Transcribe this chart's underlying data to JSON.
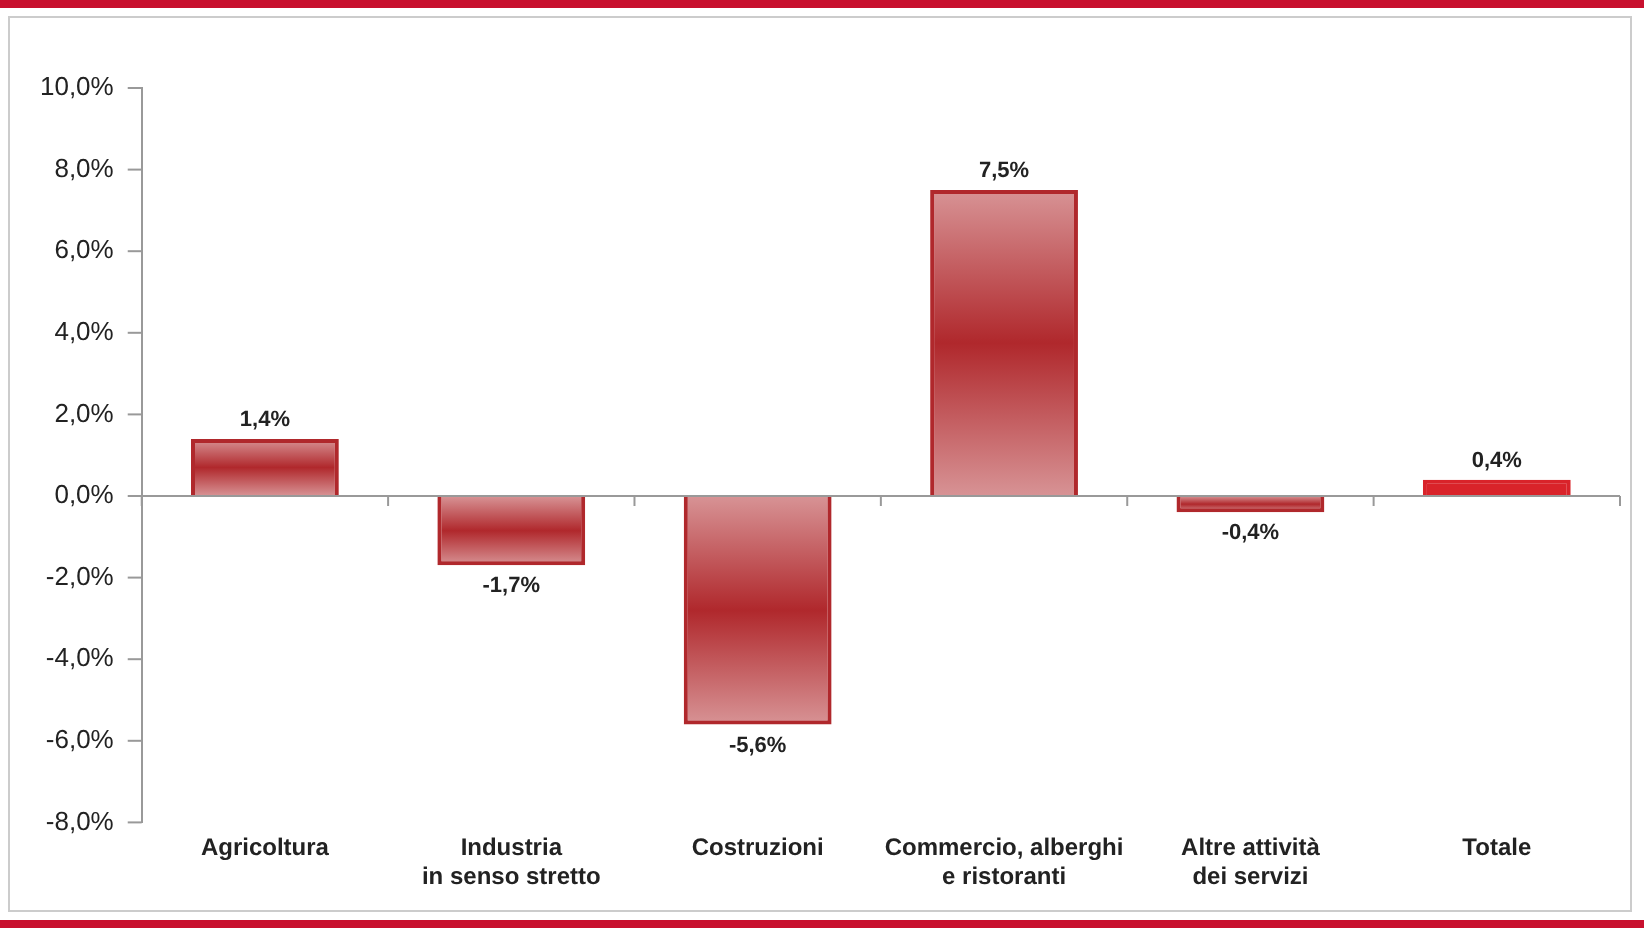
{
  "chart_data": {
    "type": "bar",
    "categories": [
      "Agricoltura",
      "Industria\nin senso stretto",
      "Costruzioni",
      "Commercio, alberghi\ne ristoranti",
      "Altre attività\ndei servizi",
      "Totale"
    ],
    "values": [
      1.4,
      -1.7,
      -5.6,
      7.5,
      -0.4,
      0.4
    ],
    "colors": [
      "#b0282c",
      "#b0282c",
      "#b0282c",
      "#b0282c",
      "#b0282c",
      "#d9232a"
    ],
    "value_labels": [
      "1,4%",
      "-1,7%",
      "-5,6%",
      "7,5%",
      "-0,4%",
      "0,4%"
    ],
    "ylim": [
      -8,
      10
    ],
    "yticks": [
      {
        "value": -8,
        "label": "-8,0%"
      },
      {
        "value": -6,
        "label": "-6,0%"
      },
      {
        "value": -4,
        "label": "-4,0%"
      },
      {
        "value": -2,
        "label": "-2,0%"
      },
      {
        "value": 0,
        "label": "0,0%"
      },
      {
        "value": 2,
        "label": "2,0%"
      },
      {
        "value": 4,
        "label": "4,0%"
      },
      {
        "value": 6,
        "label": "6,0%"
      },
      {
        "value": 8,
        "label": "8,0%"
      },
      {
        "value": 10,
        "label": "10,0%"
      }
    ],
    "legend": false
  }
}
